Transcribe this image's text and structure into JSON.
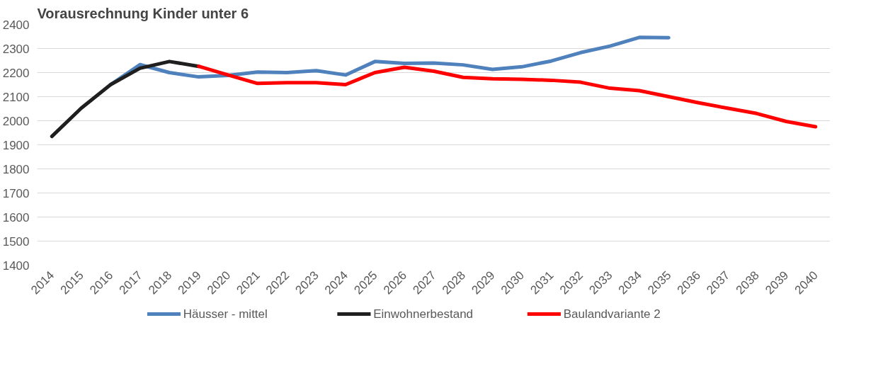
{
  "chart_data": {
    "type": "line",
    "title": "Vorausrechnung Kinder unter 6",
    "categories": [
      "2014",
      "2015",
      "2016",
      "2017",
      "2018",
      "2019",
      "2020",
      "2021",
      "2022",
      "2023",
      "2024",
      "2025",
      "2026",
      "2027",
      "2028",
      "2029",
      "2030",
      "2031",
      "2032",
      "2033",
      "2034",
      "2035",
      "2036",
      "2037",
      "2038",
      "2039",
      "2040"
    ],
    "series": [
      {
        "name": "Häusser - mittel",
        "color": "#4f81bd",
        "values": [
          null,
          null,
          2150,
          2233,
          2200,
          2182,
          2188,
          2202,
          2200,
          2208,
          2190,
          2246,
          2238,
          2240,
          2232,
          2213,
          2224,
          2248,
          2283,
          2310,
          2346,
          2345,
          null,
          null,
          null,
          null,
          null
        ]
      },
      {
        "name": "Einwohnerbestand",
        "color": "#1f1f1f",
        "values": [
          1935,
          2052,
          2150,
          2218,
          2246,
          2226,
          null,
          null,
          null,
          null,
          null,
          null,
          null,
          null,
          null,
          null,
          null,
          null,
          null,
          null,
          null,
          null,
          null,
          null,
          null,
          null,
          null
        ]
      },
      {
        "name": "Baulandvariante 2",
        "color": "#ff0000",
        "values": [
          null,
          null,
          null,
          null,
          null,
          2226,
          2190,
          2155,
          2158,
          2158,
          2150,
          2200,
          2222,
          2206,
          2180,
          2174,
          2172,
          2168,
          2160,
          2135,
          2125,
          2100,
          2075,
          2052,
          2030,
          1997,
          1975
        ]
      }
    ],
    "ylim": [
      1400,
      2400
    ],
    "yticks": [
      1400,
      1500,
      1600,
      1700,
      1800,
      1900,
      2000,
      2100,
      2200,
      2300,
      2400
    ],
    "grid": "y",
    "legend": "bottom",
    "marker": "none",
    "line_style": "solid"
  }
}
